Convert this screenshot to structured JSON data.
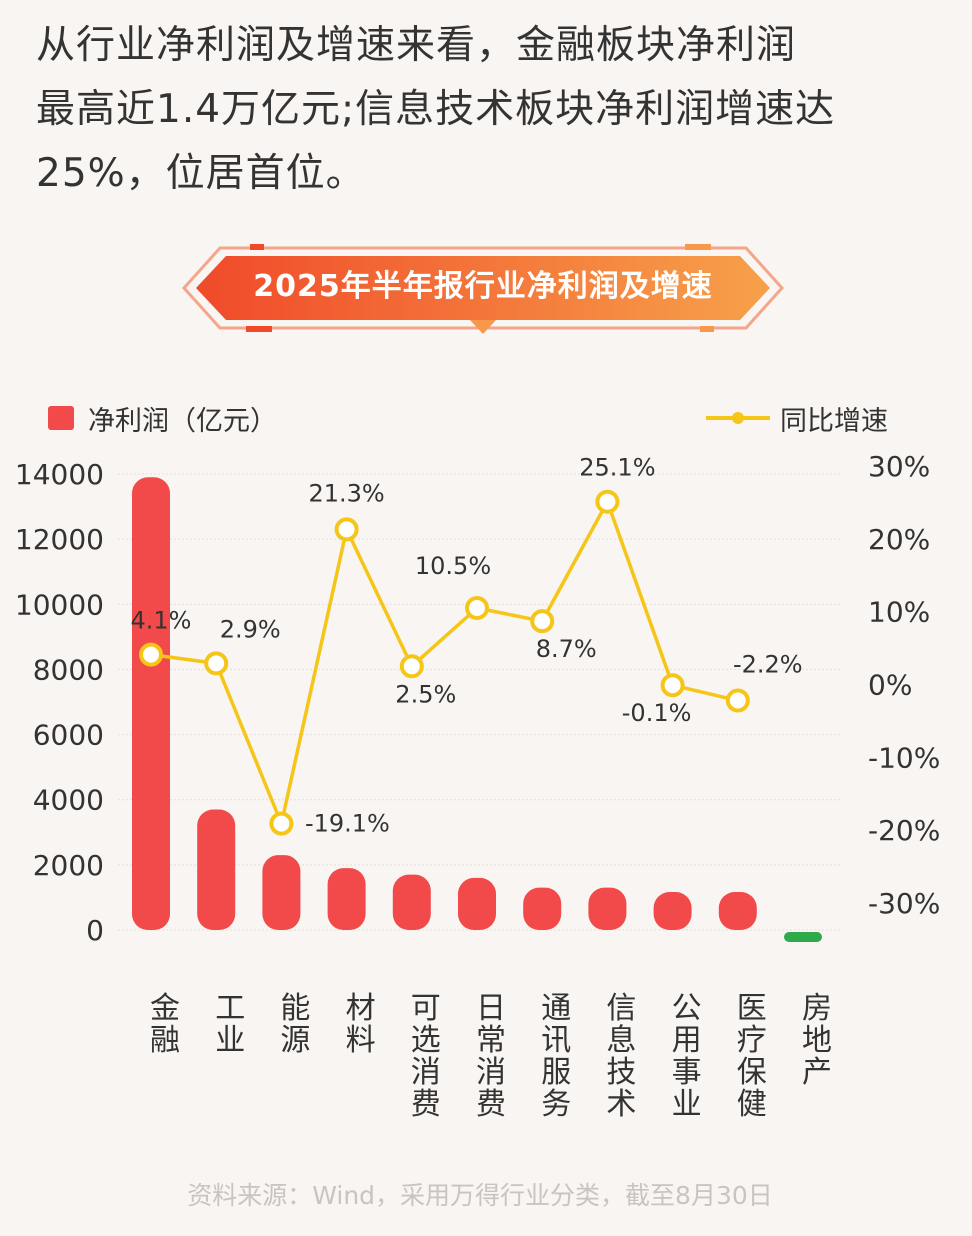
{
  "headline": {
    "line1": "从行业净利润及增速来看，金融板块净利润",
    "line2": "最高近1.4万亿元;信息技术板块净利润增速达",
    "line3": "25%，位居首位。"
  },
  "banner_title": "2025年半年报行业净利润及增速",
  "source_note": "资料来源：Wind，采用万得行业分类，截至8月30日",
  "colors": {
    "bar_positive": "#f24a4a",
    "bar_negative": "#2faa4a",
    "line": "#f5c518",
    "banner": "#f25a2e"
  },
  "chart_data": {
    "type": "bar+line",
    "categories": [
      "金融",
      "工业",
      "能源",
      "材料",
      "可选消费",
      "日常消费",
      "通讯服务",
      "信息技术",
      "公用事业",
      "医疗保健",
      "房地产"
    ],
    "series": [
      {
        "name": "净利润（亿元）",
        "type": "bar",
        "axis": "left",
        "values": [
          13900,
          3700,
          2300,
          1900,
          1700,
          1600,
          1300,
          1300,
          1100,
          900,
          -150
        ]
      },
      {
        "name": "同比增速",
        "type": "line",
        "axis": "right",
        "values": [
          4.1,
          2.9,
          -19.1,
          21.3,
          2.5,
          10.5,
          8.7,
          25.1,
          -0.1,
          -2.2,
          null
        ],
        "labels": [
          "4.1%",
          "2.9%",
          "-19.1%",
          "21.3%",
          "2.5%",
          "10.5%",
          "8.7%",
          "25.1%",
          "-0.1%",
          "-2.2%",
          ""
        ]
      }
    ],
    "left_axis": {
      "ylim": [
        0,
        14000
      ],
      "ticks": [
        0,
        2000,
        4000,
        6000,
        8000,
        10000,
        12000,
        14000
      ],
      "tick_labels": [
        "0",
        "2000",
        "4000",
        "6000",
        "8000",
        "10000",
        "12000",
        "14000"
      ]
    },
    "right_axis": {
      "ylim": [
        -30,
        30
      ],
      "ticks": [
        -30,
        -20,
        -10,
        0,
        10,
        20,
        30
      ],
      "tick_labels": [
        "-30%",
        "-20%",
        "-10%",
        "0%",
        "10%",
        "20%",
        "30%"
      ]
    },
    "legend": {
      "bar_label": "净利润（亿元）",
      "line_label": "同比增速",
      "placement": "top"
    },
    "grid": true
  }
}
